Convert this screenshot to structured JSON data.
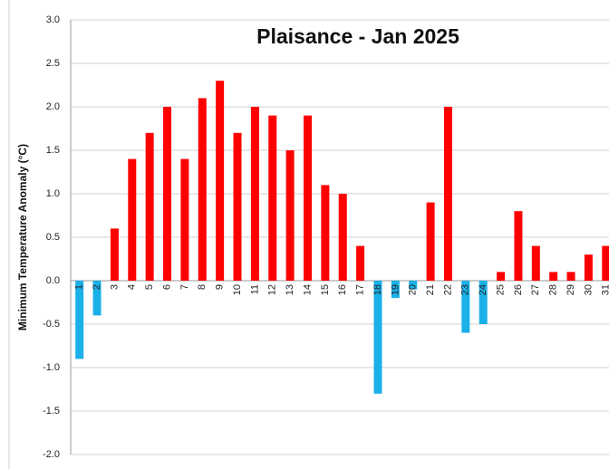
{
  "chart_data": {
    "type": "bar",
    "title": "Plaisance - Jan 2025",
    "y_label": "Minimum Temperature Anomaly (°C)",
    "categories": [
      "1",
      "2",
      "3",
      "4",
      "5",
      "6",
      "7",
      "8",
      "9",
      "10",
      "11",
      "12",
      "13",
      "14",
      "15",
      "16",
      "17",
      "18",
      "19",
      "20",
      "21",
      "22",
      "23",
      "24",
      "25",
      "26",
      "27",
      "28",
      "29",
      "30",
      "31"
    ],
    "values": [
      -0.9,
      -0.4,
      0.6,
      1.4,
      1.7,
      2.0,
      1.4,
      2.1,
      2.3,
      1.7,
      2.0,
      1.9,
      1.5,
      1.9,
      1.1,
      1.0,
      0.4,
      -1.3,
      -0.2,
      -0.1,
      0.9,
      2.0,
      -0.6,
      -0.5,
      0.1,
      0.8,
      0.4,
      0.1,
      0.1,
      0.3,
      0.4
    ],
    "positive_color": "#ff0000",
    "negative_color": "#1ab0e8",
    "ylim": [
      -2,
      3
    ],
    "yticks": [
      {
        "value": 3,
        "label": "3.0"
      },
      2.5,
      {
        "value": 2,
        "label": "2.0"
      },
      1.5,
      {
        "value": 1,
        "label": "1.0"
      },
      0.5,
      {
        "value": 0,
        "label": "0.0"
      },
      -0.5,
      {
        "value": -1,
        "label": "-1.0"
      },
      -1.5,
      {
        "value": -2,
        "label": "-2.0"
      }
    ],
    "grid": true
  }
}
